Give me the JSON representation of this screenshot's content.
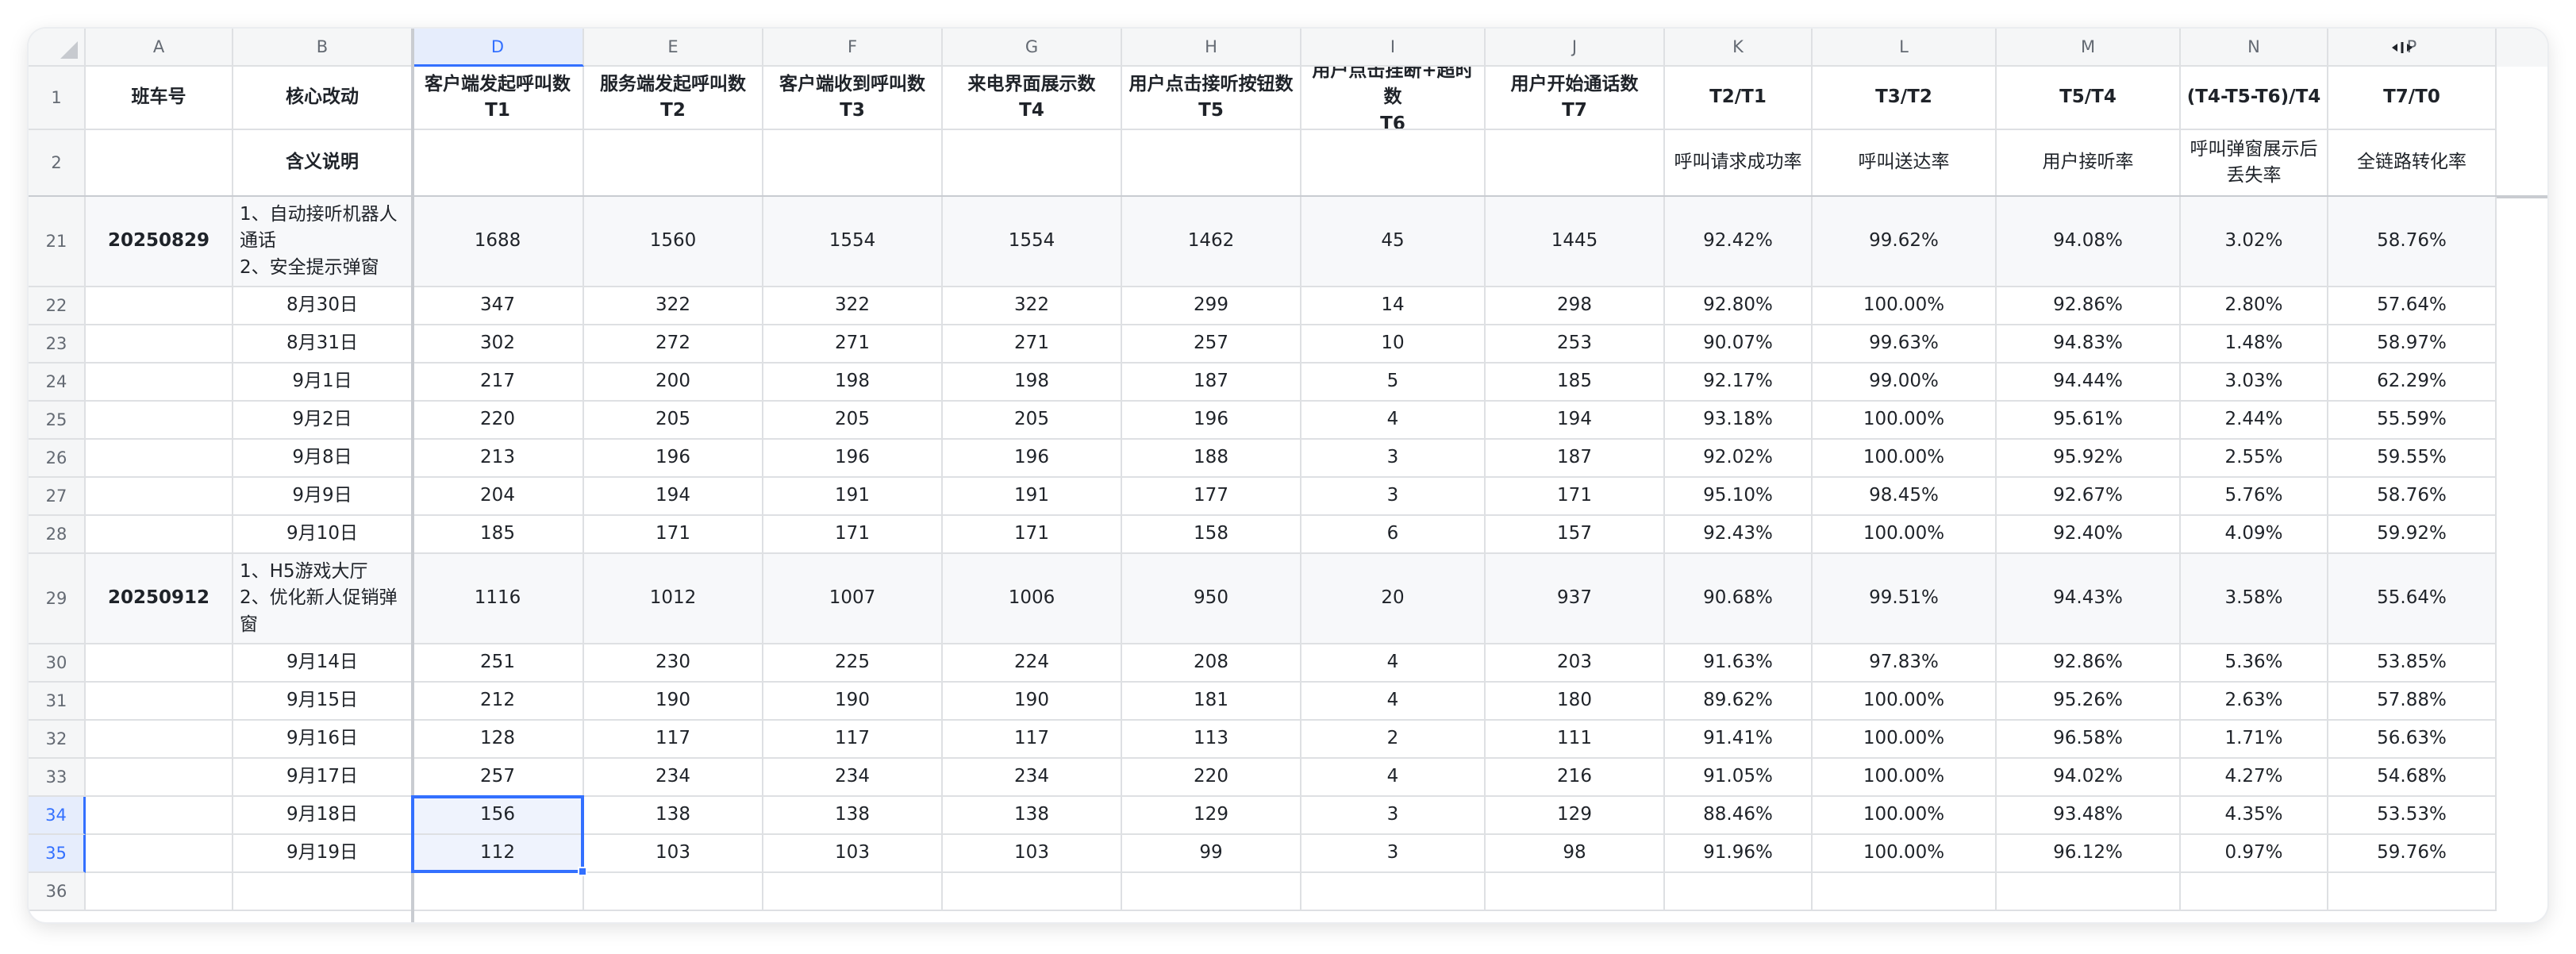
{
  "columns": [
    {
      "letter": "A"
    },
    {
      "letter": "B"
    },
    {
      "letter": "D"
    },
    {
      "letter": "E"
    },
    {
      "letter": "F"
    },
    {
      "letter": "G"
    },
    {
      "letter": "H"
    },
    {
      "letter": "I"
    },
    {
      "letter": "J"
    },
    {
      "letter": "K"
    },
    {
      "letter": "L"
    },
    {
      "letter": "M"
    },
    {
      "letter": "N"
    },
    {
      "letter": "P"
    }
  ],
  "selected_column": "D",
  "selected_rows": [
    "34",
    "35"
  ],
  "header_row": {
    "number": "1",
    "cells": [
      [
        "班车号"
      ],
      [
        "核心改动"
      ],
      [
        "客户端发起呼叫数",
        "T1"
      ],
      [
        "服务端发起呼叫数",
        "T2"
      ],
      [
        "客户端收到呼叫数",
        "T3"
      ],
      [
        "来电界面展示数",
        "T4"
      ],
      [
        "用户点击接听按钮数",
        "T5"
      ],
      [
        "用户点击挂断+超时数",
        "T6"
      ],
      [
        "用户开始通话数",
        "T7"
      ],
      [
        "T2/T1"
      ],
      [
        "T3/T2"
      ],
      [
        "T5/T4"
      ],
      [
        "(T4-T5-T6)/T4"
      ],
      [
        "T7/T0"
      ]
    ]
  },
  "desc_row": {
    "number": "2",
    "cells": [
      [],
      [
        "含义说明"
      ],
      [],
      [],
      [],
      [],
      [],
      [],
      [],
      [
        "呼叫请求成功率"
      ],
      [
        "呼叫送达率"
      ],
      [
        "用户接听率"
      ],
      [
        "呼叫弹窗展示后",
        "丢失率"
      ],
      [
        "全链路转化率"
      ]
    ]
  },
  "rows": [
    {
      "number": "21",
      "tall": true,
      "values": [
        "20250829",
        [
          "1、自动接听机器人",
          "通话",
          "2、安全提示弹窗"
        ],
        "1688",
        "1560",
        "1554",
        "1554",
        "1462",
        "45",
        "1445",
        "92.42%",
        "99.62%",
        "94.08%",
        "3.02%",
        "58.76%"
      ]
    },
    {
      "number": "22",
      "values": [
        "",
        "8月30日",
        "347",
        "322",
        "322",
        "322",
        "299",
        "14",
        "298",
        "92.80%",
        "100.00%",
        "92.86%",
        "2.80%",
        "57.64%"
      ]
    },
    {
      "number": "23",
      "values": [
        "",
        "8月31日",
        "302",
        "272",
        "271",
        "271",
        "257",
        "10",
        "253",
        "90.07%",
        "99.63%",
        "94.83%",
        "1.48%",
        "58.97%"
      ]
    },
    {
      "number": "24",
      "values": [
        "",
        "9月1日",
        "217",
        "200",
        "198",
        "198",
        "187",
        "5",
        "185",
        "92.17%",
        "99.00%",
        "94.44%",
        "3.03%",
        "62.29%"
      ]
    },
    {
      "number": "25",
      "values": [
        "",
        "9月2日",
        "220",
        "205",
        "205",
        "205",
        "196",
        "4",
        "194",
        "93.18%",
        "100.00%",
        "95.61%",
        "2.44%",
        "55.59%"
      ]
    },
    {
      "number": "26",
      "values": [
        "",
        "9月8日",
        "213",
        "196",
        "196",
        "196",
        "188",
        "3",
        "187",
        "92.02%",
        "100.00%",
        "95.92%",
        "2.55%",
        "59.55%"
      ]
    },
    {
      "number": "27",
      "values": [
        "",
        "9月9日",
        "204",
        "194",
        "191",
        "191",
        "177",
        "3",
        "171",
        "95.10%",
        "98.45%",
        "92.67%",
        "5.76%",
        "58.76%"
      ]
    },
    {
      "number": "28",
      "values": [
        "",
        "9月10日",
        "185",
        "171",
        "171",
        "171",
        "158",
        "6",
        "157",
        "92.43%",
        "100.00%",
        "92.40%",
        "4.09%",
        "59.92%"
      ]
    },
    {
      "number": "29",
      "tall": true,
      "values": [
        "20250912",
        [
          "1、H5游戏大厅",
          "2、优化新人促销弹",
          "窗"
        ],
        "1116",
        "1012",
        "1007",
        "1006",
        "950",
        "20",
        "937",
        "90.68%",
        "99.51%",
        "94.43%",
        "3.58%",
        "55.64%"
      ]
    },
    {
      "number": "30",
      "values": [
        "",
        "9月14日",
        "251",
        "230",
        "225",
        "224",
        "208",
        "4",
        "203",
        "91.63%",
        "97.83%",
        "92.86%",
        "5.36%",
        "53.85%"
      ]
    },
    {
      "number": "31",
      "values": [
        "",
        "9月15日",
        "212",
        "190",
        "190",
        "190",
        "181",
        "4",
        "180",
        "89.62%",
        "100.00%",
        "95.26%",
        "2.63%",
        "57.88%"
      ]
    },
    {
      "number": "32",
      "values": [
        "",
        "9月16日",
        "128",
        "117",
        "117",
        "117",
        "113",
        "2",
        "111",
        "91.41%",
        "100.00%",
        "96.58%",
        "1.71%",
        "56.63%"
      ]
    },
    {
      "number": "33",
      "values": [
        "",
        "9月17日",
        "257",
        "234",
        "234",
        "234",
        "220",
        "4",
        "216",
        "91.05%",
        "100.00%",
        "94.02%",
        "4.27%",
        "54.68%"
      ]
    },
    {
      "number": "34",
      "values": [
        "",
        "9月18日",
        "156",
        "138",
        "138",
        "138",
        "129",
        "3",
        "129",
        "88.46%",
        "100.00%",
        "93.48%",
        "4.35%",
        "53.53%"
      ]
    },
    {
      "number": "35",
      "values": [
        "",
        "9月19日",
        "112",
        "103",
        "103",
        "103",
        "99",
        "3",
        "98",
        "91.96%",
        "100.00%",
        "96.12%",
        "0.97%",
        "59.76%"
      ]
    },
    {
      "number": "36",
      "values": [
        "",
        "",
        "",
        "",
        "",
        "",
        "",
        "",
        "",
        "",
        "",
        "",
        "",
        ""
      ]
    }
  ],
  "colors": {
    "accent": "#3370ff",
    "grid": "#dee0e3",
    "header_bg": "#f5f6f7",
    "selection_bg": "#eff3fd"
  },
  "icons": {
    "corner": "select-all-triangle-icon",
    "column_resize": "column-resize-arrows-icon"
  }
}
